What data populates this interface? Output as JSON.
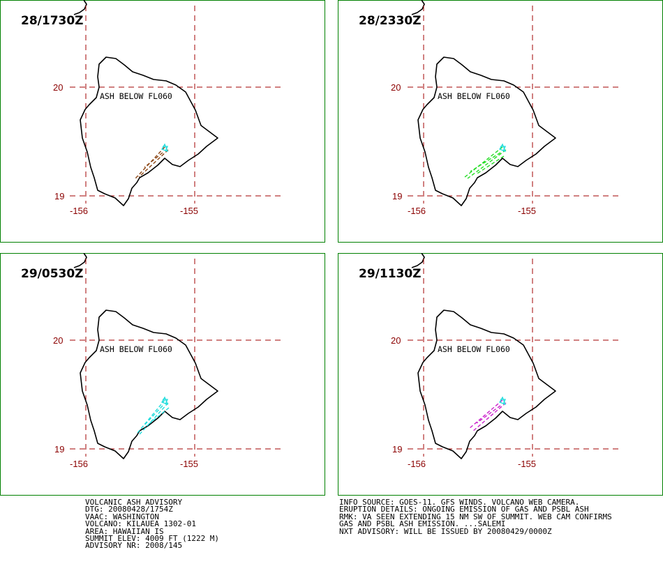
{
  "panels": [
    {
      "time": "28/1730Z",
      "ash_label": "ASH BELOW FL060",
      "plume_color": "#8b4513"
    },
    {
      "time": "28/2330Z",
      "ash_label": "ASH BELOW FL060",
      "plume_color": "#22dd22"
    },
    {
      "time": "29/0530Z",
      "ash_label": "ASH BELOW FL060",
      "plume_color": "#22dddd"
    },
    {
      "time": "29/1130Z",
      "ash_label": "ASH BELOW FL060",
      "plume_color": "#cc22cc"
    }
  ],
  "axes": {
    "lat_labels": [
      "20",
      "19"
    ],
    "lon_labels": [
      "-156",
      "-155"
    ]
  },
  "colors": {
    "frame": "#008000",
    "grid": "#a00000",
    "tick_label": "#8b0000",
    "vent_marker": "#22dddd",
    "coastline": "#000000"
  },
  "advisory_left": [
    "VOLCANIC ASH ADVISORY",
    "DTG: 20080428/1754Z",
    "VAAC: WASHINGTON",
    "VOLCANO: KILAUEA 1302-01",
    "AREA: HAWAIIAN IS",
    "SUMMIT ELEV: 4009 FT (1222 M)",
    "ADVISORY NR: 2008/145"
  ],
  "advisory_right": [
    "INFO SOURCE: GOES-11. GFS WINDS. VOLCANO WEB CAMERA.",
    "ERUPTION DETAILS: ONGOING EMISSION OF GAS AND PSBL ASH",
    "RMK: VA SEEN EXTENDING 15 NM SW OF SUMMIT. WEB CAM CONFIRMS",
    "GAS AND PSBL ASH EMISSION. ...SALEMI",
    "NXT ADVISORY: WILL BE ISSUED BY 20080429/0000Z"
  ]
}
